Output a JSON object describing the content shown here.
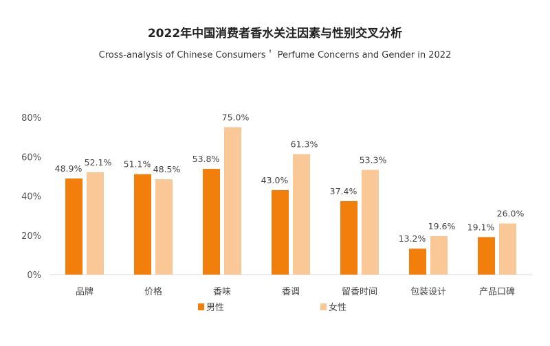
{
  "chart_data": {
    "type": "bar",
    "title": "2022年中国消费者香水关注因素与性别交叉分析",
    "subtitle": "Cross-analysis of Chinese Consumers＇ Perfume Concerns and Gender in 2022",
    "categories": [
      "品牌",
      "价格",
      "香味",
      "香调",
      "留香时间",
      "包装设计",
      "产品口碑"
    ],
    "series": [
      {
        "name": "男性",
        "color": "#F27F0C",
        "values": [
          48.9,
          51.1,
          53.8,
          43.0,
          37.4,
          13.2,
          19.1
        ]
      },
      {
        "name": "女性",
        "color": "#F9C896",
        "values": [
          52.1,
          48.5,
          75.0,
          61.3,
          53.3,
          19.6,
          26.0
        ]
      }
    ],
    "data_labels": [
      [
        "48.9%",
        "51.1%",
        "53.8%",
        "43.0%",
        "37.4%",
        "13.2%",
        "19.1%"
      ],
      [
        "52.1%",
        "48.5%",
        "75.0%",
        "61.3%",
        "53.3%",
        "19.6%",
        "26.0%"
      ]
    ],
    "yticks": [
      "0%",
      "20%",
      "40%",
      "60%",
      "80%"
    ],
    "ytick_values": [
      0,
      20,
      40,
      60,
      80
    ],
    "ylim": [
      0,
      80
    ],
    "xlabel": "",
    "ylabel": "",
    "grid": false,
    "legend_position": "bottom"
  }
}
